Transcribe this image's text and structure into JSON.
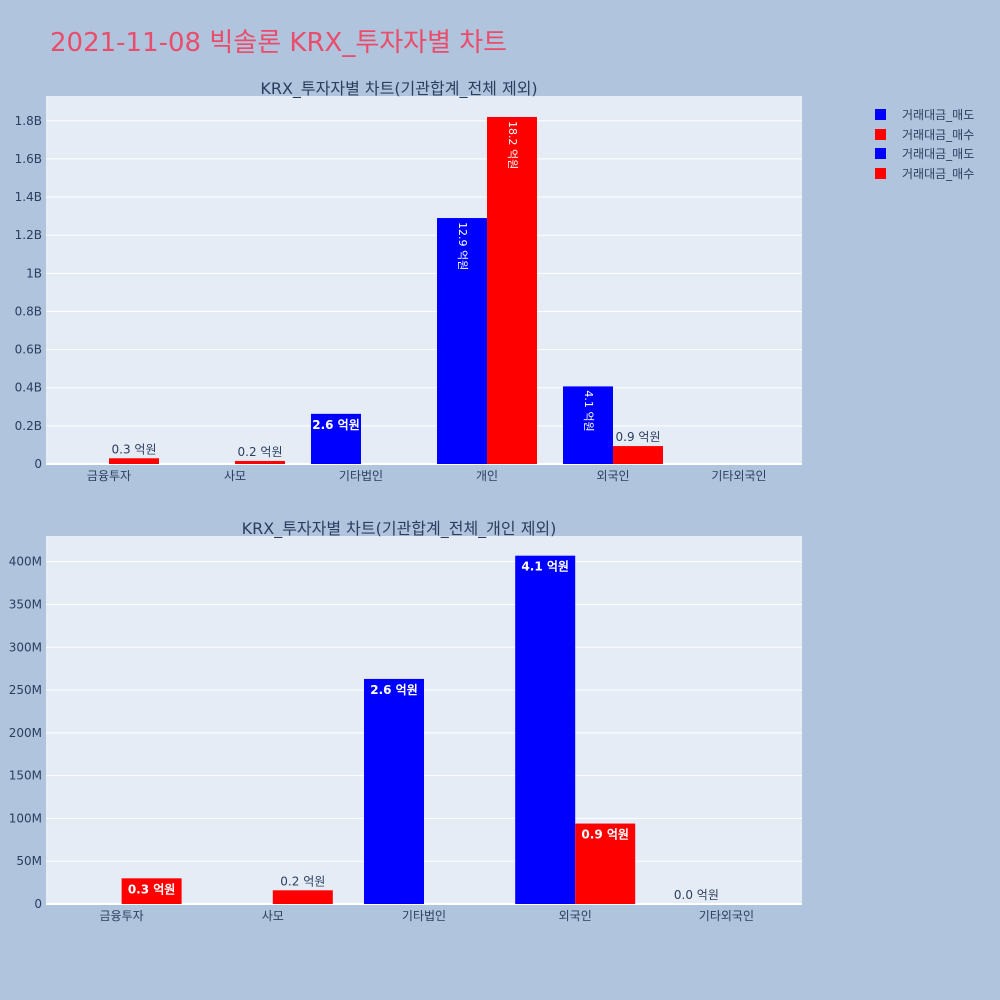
{
  "page_title": "2021-11-08 빅솔론 KRX_투자자별 차트",
  "colors": {
    "page_bg": "#b0c4de",
    "plot_bg": "#e5ecf6",
    "sell": "#0000ff",
    "buy": "#ff0000",
    "title": "#ea4c6b",
    "text": "#2a3f5f"
  },
  "legend": [
    {
      "label": "거래대금_매도",
      "color": "#0000ff"
    },
    {
      "label": "거래대금_매수",
      "color": "#ff0000"
    },
    {
      "label": "거래대금_매도",
      "color": "#0000ff"
    },
    {
      "label": "거래대금_매수",
      "color": "#ff0000"
    }
  ],
  "chart_data": [
    {
      "type": "bar",
      "title": "KRX_투자자별 차트(기관합계_전체 제외)",
      "categories": [
        "금융투자",
        "사모",
        "기타법인",
        "개인",
        "외국인",
        "기타외국인"
      ],
      "yticks": [
        "0",
        "0.2B",
        "0.4B",
        "0.6B",
        "0.8B",
        "1B",
        "1.2B",
        "1.4B",
        "1.6B",
        "1.8B"
      ],
      "ylim": [
        0,
        1.93
      ],
      "grid": true,
      "series": [
        {
          "name": "거래대금_매도",
          "values": [
            0,
            0,
            0.263,
            1.29,
            0.407,
            0
          ],
          "labels": [
            "",
            "",
            "2.6 억원",
            "12.9 억원",
            "4.1 억원",
            ""
          ]
        },
        {
          "name": "거래대금_매수",
          "values": [
            0.03,
            0.016,
            0,
            1.82,
            0.094,
            0
          ],
          "labels": [
            "0.3 억원",
            "0.2 억원",
            "",
            "18.2 억원",
            "0.9 억원",
            ""
          ]
        }
      ]
    },
    {
      "type": "bar",
      "title": "KRX_투자자별 차트(기관합계_전체_개인 제외)",
      "categories": [
        "금융투자",
        "사모",
        "기타법인",
        "외국인",
        "기타외국인"
      ],
      "yticks": [
        "0",
        "50M",
        "100M",
        "150M",
        "200M",
        "250M",
        "300M",
        "350M",
        "400M"
      ],
      "ylim": [
        0,
        430
      ],
      "grid": true,
      "series": [
        {
          "name": "거래대금_매도",
          "values": [
            0,
            0,
            263,
            407,
            0
          ],
          "labels": [
            "",
            "",
            "2.6 억원",
            "4.1 억원",
            "0.0 억원"
          ]
        },
        {
          "name": "거래대금_매수",
          "values": [
            30,
            16,
            0,
            94,
            0
          ],
          "labels": [
            "0.3 억원",
            "0.2 억원",
            "",
            "0.9 억원",
            ""
          ]
        }
      ]
    }
  ]
}
